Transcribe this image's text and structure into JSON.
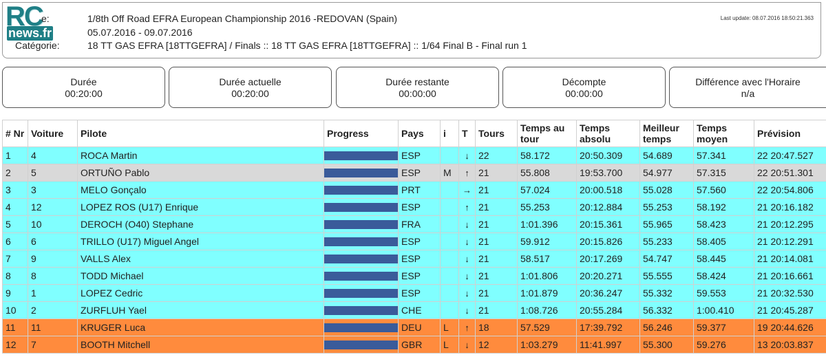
{
  "header": {
    "logo_top": "RC",
    "logo_bottom": "news.fr",
    "e_label": "e:",
    "title": "1/8th Off Road EFRA European Championship 2016 -REDOVAN (Spain)",
    "dates": "05.07.2016 - 09.07.2016",
    "category_label": "Catégorie:",
    "category": "18 TT GAS EFRA [18TTGEFRA] / Finals :: 18 TT GAS EFRA [18TTGEFRA] :: 1/64 Final B - Final run 1",
    "last_update": "Last update: 08.07.2016 18:50:21.363"
  },
  "info_boxes": [
    {
      "label": "Durée",
      "value": "00:20:00"
    },
    {
      "label": "Durée actuelle",
      "value": "00:20:00"
    },
    {
      "label": "Durée restante",
      "value": "00:00:00"
    },
    {
      "label": "Décompte",
      "value": "00:00:00"
    },
    {
      "label": "Différence avec l'Horaire",
      "value": "n/a"
    }
  ],
  "table": {
    "columns": [
      "# Nr",
      "Voiture",
      "Pilote",
      "Progress",
      "Pays",
      "i",
      "T",
      "Tours",
      "Temps au tour",
      "Temps absolu",
      "Meilleur temps",
      "Temps moyen",
      "Prévision"
    ],
    "rows": [
      {
        "nr": "1",
        "voiture": "4",
        "pilote": "ROCA Martin",
        "progress": 1.0,
        "pays": "ESP",
        "i": "",
        "trend": "down",
        "tours": "22",
        "tour": "58.172",
        "absolu": "20:50.309",
        "meilleur": "54.689",
        "moyen": "57.341",
        "prevision": "22 20:47.527",
        "color": "cyan"
      },
      {
        "nr": "2",
        "voiture": "5",
        "pilote": "ORTUÑO Pablo",
        "progress": 1.0,
        "pays": "ESP",
        "i": "M",
        "trend": "up",
        "tours": "21",
        "tour": "55.808",
        "absolu": "19:53.700",
        "meilleur": "54.977",
        "moyen": "57.315",
        "prevision": "22 20:51.301",
        "color": "grey"
      },
      {
        "nr": "3",
        "voiture": "3",
        "pilote": "MELO Gonçalo",
        "progress": 1.0,
        "pays": "PRT",
        "i": "",
        "trend": "right",
        "tours": "21",
        "tour": "57.024",
        "absolu": "20:00.518",
        "meilleur": "55.028",
        "moyen": "57.560",
        "prevision": "22 20:54.806",
        "color": "cyan"
      },
      {
        "nr": "4",
        "voiture": "12",
        "pilote": "LOPEZ ROS (U17) Enrique",
        "progress": 1.0,
        "pays": "ESP",
        "i": "",
        "trend": "up",
        "tours": "21",
        "tour": "55.253",
        "absolu": "20:12.884",
        "meilleur": "55.253",
        "moyen": "58.192",
        "prevision": "21 20:16.182",
        "color": "cyan"
      },
      {
        "nr": "5",
        "voiture": "10",
        "pilote": "DEROCH (O40) Stephane",
        "progress": 1.0,
        "pays": "FRA",
        "i": "",
        "trend": "down",
        "tours": "21",
        "tour": "1:01.396",
        "absolu": "20:15.361",
        "meilleur": "55.965",
        "moyen": "58.423",
        "prevision": "21 20:12.295",
        "color": "cyan"
      },
      {
        "nr": "6",
        "voiture": "6",
        "pilote": "TRILLO (U17) Miguel Angel",
        "progress": 1.0,
        "pays": "ESP",
        "i": "",
        "trend": "down",
        "tours": "21",
        "tour": "59.912",
        "absolu": "20:15.826",
        "meilleur": "55.233",
        "moyen": "58.405",
        "prevision": "21 20:12.291",
        "color": "cyan"
      },
      {
        "nr": "7",
        "voiture": "9",
        "pilote": "VALLS Alex",
        "progress": 1.0,
        "pays": "ESP",
        "i": "",
        "trend": "down",
        "tours": "21",
        "tour": "58.517",
        "absolu": "20:17.269",
        "meilleur": "54.747",
        "moyen": "58.445",
        "prevision": "21 20:14.081",
        "color": "cyan"
      },
      {
        "nr": "8",
        "voiture": "8",
        "pilote": "TODD Michael",
        "progress": 1.0,
        "pays": "ESP",
        "i": "",
        "trend": "down",
        "tours": "21",
        "tour": "1:01.806",
        "absolu": "20:20.271",
        "meilleur": "55.555",
        "moyen": "58.424",
        "prevision": "21 20:16.661",
        "color": "cyan"
      },
      {
        "nr": "9",
        "voiture": "1",
        "pilote": "LOPEZ Cedric",
        "progress": 1.0,
        "pays": "ESP",
        "i": "",
        "trend": "down",
        "tours": "21",
        "tour": "1:01.879",
        "absolu": "20:36.247",
        "meilleur": "55.332",
        "moyen": "59.553",
        "prevision": "21 20:32.530",
        "color": "cyan"
      },
      {
        "nr": "10",
        "voiture": "2",
        "pilote": "ZURFLUH Yael",
        "progress": 1.0,
        "pays": "CHE",
        "i": "",
        "trend": "down",
        "tours": "21",
        "tour": "1:08.726",
        "absolu": "20:55.284",
        "meilleur": "56.332",
        "moyen": "1:00.410",
        "prevision": "21 20:45.287",
        "color": "cyan"
      },
      {
        "nr": "11",
        "voiture": "11",
        "pilote": "KRUGER Luca",
        "progress": 1.0,
        "pays": "DEU",
        "i": "L",
        "trend": "up",
        "tours": "18",
        "tour": "57.529",
        "absolu": "17:39.792",
        "meilleur": "56.246",
        "moyen": "59.377",
        "prevision": "19 20:44.626",
        "color": "orange"
      },
      {
        "nr": "12",
        "voiture": "7",
        "pilote": "BOOTH Mitchell",
        "progress": 1.0,
        "pays": "GBR",
        "i": "L",
        "trend": "down",
        "tours": "12",
        "tour": "1:03.279",
        "absolu": "11:41.997",
        "meilleur": "55.300",
        "moyen": "59.276",
        "prevision": "13 20:03.837",
        "color": "orange"
      }
    ]
  }
}
